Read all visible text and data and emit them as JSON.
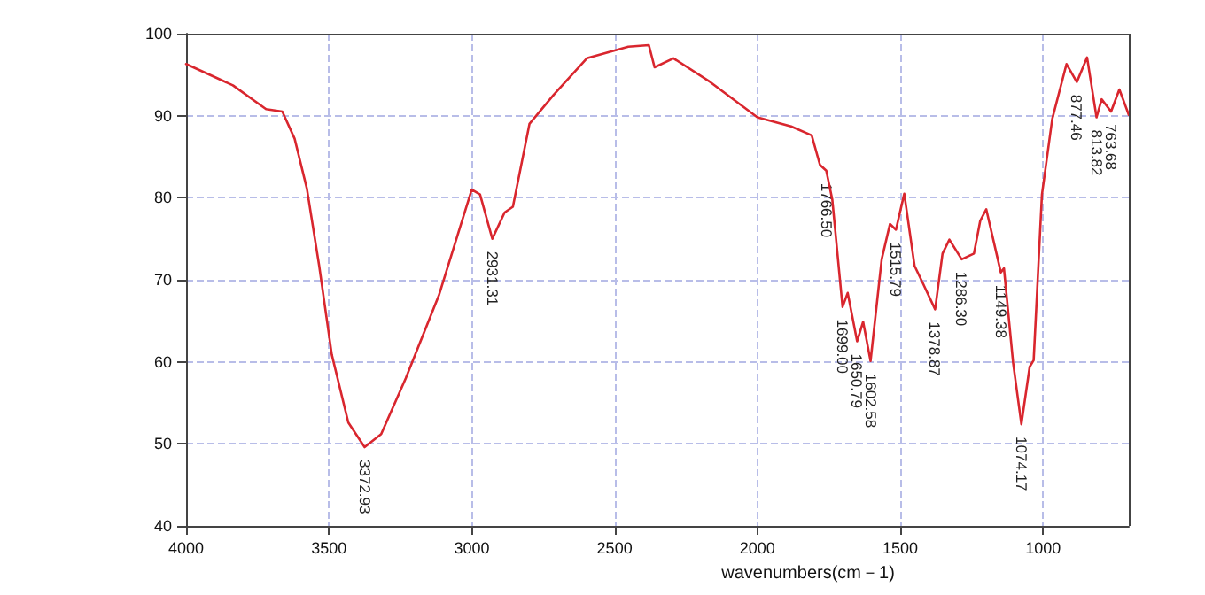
{
  "chart_data": {
    "type": "line",
    "xlabel": "wavenumbers(cm－1)",
    "x": [
      4000,
      3836,
      3720,
      3663,
      3620,
      3577,
      3534,
      3490,
      3432,
      3375,
      3317,
      3231,
      3115,
      3000,
      2971,
      2928,
      2885,
      2856,
      2798,
      2712,
      2597,
      2452,
      2380,
      2360,
      2294,
      2165,
      2000,
      1882,
      1810,
      1781,
      1759,
      1738,
      1702,
      1684,
      1651,
      1630,
      1604,
      1565,
      1536,
      1515,
      1486,
      1450,
      1421,
      1378,
      1352,
      1328,
      1285,
      1242,
      1220,
      1199,
      1148,
      1137,
      1105,
      1076,
      1047,
      1033,
      1004,
      968,
      918,
      882,
      846,
      813,
      795,
      762,
      733,
      700
    ],
    "series": [
      {
        "color": "#d9262e",
        "values": [
          96.3,
          93.7,
          90.8,
          90.5,
          87.2,
          81.1,
          71.7,
          60.9,
          52.6,
          49.6,
          51.2,
          58.0,
          68.1,
          81.0,
          80.4,
          75.0,
          78.2,
          78.9,
          89.0,
          92.6,
          97.0,
          98.4,
          98.6,
          95.9,
          97.0,
          94.1,
          89.8,
          88.7,
          87.6,
          84.0,
          83.3,
          79.8,
          66.7,
          68.4,
          62.5,
          64.9,
          60.1,
          72.5,
          76.8,
          76.1,
          80.5,
          71.7,
          69.6,
          66.4,
          73.2,
          74.9,
          72.5,
          73.2,
          77.2,
          78.6,
          70.9,
          71.4,
          59.9,
          52.4,
          59.4,
          60.2,
          80.4,
          89.6,
          96.3,
          94.1,
          97.1,
          89.8,
          92.0,
          90.5,
          93.2,
          90.1
        ]
      }
    ],
    "xlim": [
      4000,
      700
    ],
    "xticks": [
      4000,
      3500,
      3000,
      2500,
      2000,
      1500,
      1000
    ],
    "ylim": [
      40,
      100
    ],
    "yticks": [
      40,
      50,
      60,
      70,
      80,
      90,
      100
    ],
    "grid": true,
    "marker": "none",
    "line_style": "solid",
    "annotations": [
      {
        "text": "3372.93",
        "x": 3375,
        "y": 49.6
      },
      {
        "text": "2931.31",
        "x": 2928,
        "y": 75.0
      },
      {
        "text": "1766.50",
        "x": 1759,
        "y": 83.3
      },
      {
        "text": "1699.00",
        "x": 1702,
        "y": 66.7
      },
      {
        "text": "1650.79",
        "x": 1651,
        "y": 62.5
      },
      {
        "text": "1602.58",
        "x": 1604,
        "y": 60.1
      },
      {
        "text": "1515.79",
        "x": 1515,
        "y": 76.1
      },
      {
        "text": "1378.87",
        "x": 1378,
        "y": 66.4
      },
      {
        "text": "1286.30",
        "x": 1285,
        "y": 72.5
      },
      {
        "text": "1149.38",
        "x": 1148,
        "y": 70.9
      },
      {
        "text": "1074.17",
        "x": 1076,
        "y": 52.4
      },
      {
        "text": "877.46",
        "x": 882,
        "y": 94.1
      },
      {
        "text": "813.82",
        "x": 813,
        "y": 89.8
      },
      {
        "text": "763.68",
        "x": 762,
        "y": 90.5
      }
    ]
  }
}
